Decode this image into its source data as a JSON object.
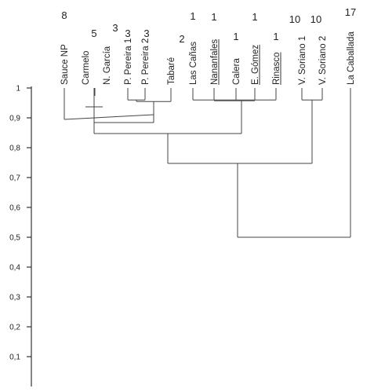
{
  "y_axis": {
    "ticks": [
      "1",
      "0,9",
      "0,8",
      "0,7",
      "0,6",
      "0,5",
      "0,4",
      "0,3",
      "0,2",
      "0,1"
    ],
    "tick_values": [
      1,
      0.9,
      0.8,
      0.7,
      0.6,
      0.5,
      0.4,
      0.3,
      0.2,
      0.1
    ],
    "range": [
      0.05,
      1
    ]
  },
  "leaves": [
    {
      "label": "Sauce NP",
      "count": "8",
      "underlined": false
    },
    {
      "label": "Carmelo",
      "count": "5",
      "underlined": false
    },
    {
      "label": "N. García",
      "count": "3",
      "underlined": false
    },
    {
      "label": "P. Pereira 1",
      "count": "3",
      "underlined": false
    },
    {
      "label": "P. Pereira 2",
      "count": "3",
      "underlined": false
    },
    {
      "label": "Tabaré",
      "count": "2",
      "underlined": false
    },
    {
      "label": "Las Cañas",
      "count": "1",
      "underlined": false
    },
    {
      "label": "Nananfales",
      "count": "1",
      "underlined": true
    },
    {
      "label": "Calera",
      "count": "1",
      "underlined": false
    },
    {
      "label": "E. Gómez",
      "count": "1",
      "underlined": true
    },
    {
      "label": "Rinasco",
      "count": "1",
      "underlined": true
    },
    {
      "label": "V. Soriano 1",
      "count": "10",
      "underlined": false
    },
    {
      "label": "V. Soriano 2",
      "count": "10",
      "underlined": false
    },
    {
      "label": "La Caballada",
      "count": "17",
      "underlined": false
    }
  ],
  "merges": [
    {
      "children": [
        "Las Cañas",
        "Nananfales",
        "Calera",
        "E. Gómez",
        "Rinasco"
      ],
      "similarity": 0.96
    },
    {
      "children": [
        "P. Pereira 1",
        "P. Pereira 2"
      ],
      "similarity": 0.96
    },
    {
      "children": [
        "P. Pereira 1",
        "P. Pereira 2",
        "Tabaré"
      ],
      "similarity": 0.96
    },
    {
      "children": [
        "V. Soriano 1",
        "V. Soriano 2"
      ],
      "similarity": 0.96
    },
    {
      "children": [
        "N. García",
        "P. Pereira 1",
        "P. Pereira 2",
        "Tabaré"
      ],
      "similarity": 0.9
    },
    {
      "children": [
        "Sauce NP",
        "Carmelo",
        "N. García",
        "P. Pereira 1",
        "P. Pereira 2",
        "Tabaré"
      ],
      "similarity": 0.88
    },
    {
      "children": [
        "Sauce NP",
        "Carmelo",
        "N. García",
        "P. Pereira 1",
        "P. Pereira 2",
        "Tabaré",
        "Las Cañas",
        "Nananfales",
        "Calera",
        "E. Gómez",
        "Rinasco"
      ],
      "similarity": 0.84
    },
    {
      "children": [
        "Sauce NP",
        "Carmelo",
        "N. García",
        "P. Pereira 1",
        "P. Pereira 2",
        "Tabaré",
        "Las Cañas",
        "Nananfales",
        "Calera",
        "E. Gómez",
        "Rinasco",
        "V. Soriano 1",
        "V. Soriano 2"
      ],
      "similarity": 0.75
    },
    {
      "children": [
        "all"
      ],
      "similarity": 0.5
    }
  ]
}
